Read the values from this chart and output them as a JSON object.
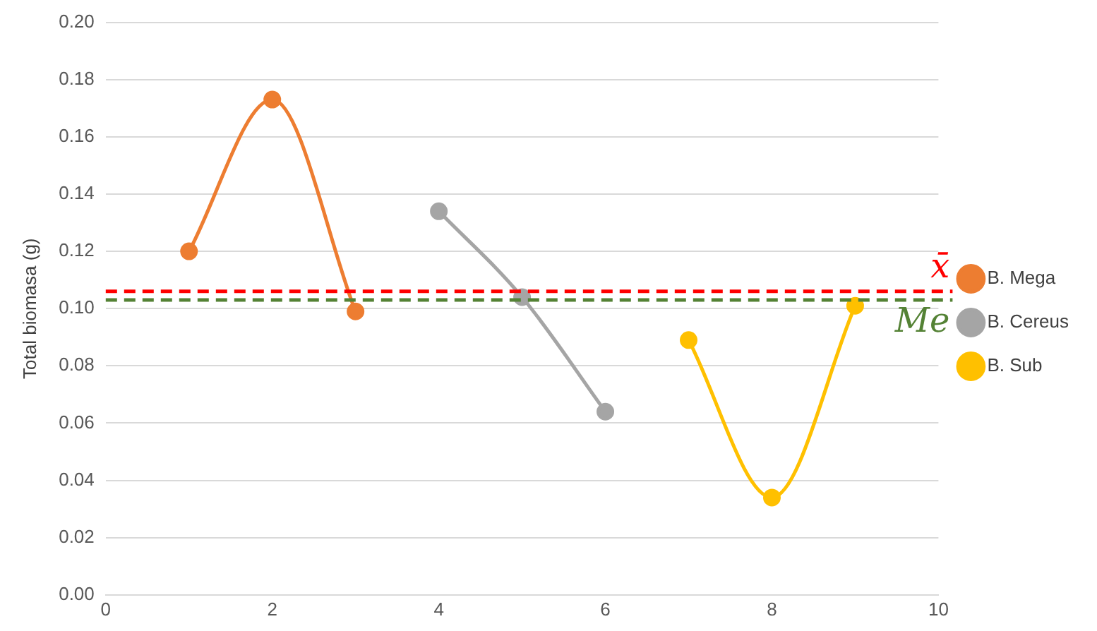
{
  "chart_data": {
    "type": "line",
    "ylabel": "Total biomasa (g)",
    "series": [
      {
        "name": "B. Mega",
        "color": "#ed7d31",
        "x": [
          1,
          2,
          3
        ],
        "values": [
          0.12,
          0.173,
          0.099
        ]
      },
      {
        "name": "B. Cereus",
        "color": "#a5a5a5",
        "x": [
          4,
          5,
          6
        ],
        "values": [
          0.134,
          0.104,
          0.064
        ]
      },
      {
        "name": "B. Sub",
        "color": "#ffc000",
        "x": [
          7,
          8,
          9
        ],
        "values": [
          0.089,
          0.034,
          0.101
        ]
      }
    ],
    "xlim": [
      0,
      10
    ],
    "xticks": [
      0,
      2,
      4,
      6,
      8,
      10
    ],
    "ylim": [
      0,
      0.2
    ],
    "yticks": [
      {
        "value": 0,
        "label": "0.00"
      },
      {
        "value": 0.02,
        "label": "0.02"
      },
      {
        "value": 0.04,
        "label": "0.04"
      },
      {
        "value": 0.06,
        "label": "0.06"
      },
      {
        "value": 0.08,
        "label": "0.08"
      },
      {
        "value": 0.1,
        "label": "0.10"
      },
      {
        "value": 0.12,
        "label": "0.12"
      },
      {
        "value": 0.14,
        "label": "0.14"
      },
      {
        "value": 0.16,
        "label": "0.16"
      },
      {
        "value": 0.18,
        "label": "0.18"
      },
      {
        "value": 0.2,
        "label": "0.20"
      }
    ],
    "ref_lines": [
      {
        "axis": "y",
        "value": 0.106,
        "label": "x̄",
        "color": "#ff0000",
        "line_style": "dashed"
      },
      {
        "axis": "y",
        "value": 0.103,
        "label": "Me",
        "color": "#548235",
        "line_style": "dashed"
      }
    ],
    "grid": "y",
    "legend": "right",
    "marker": "circle",
    "line_style": "solid"
  }
}
